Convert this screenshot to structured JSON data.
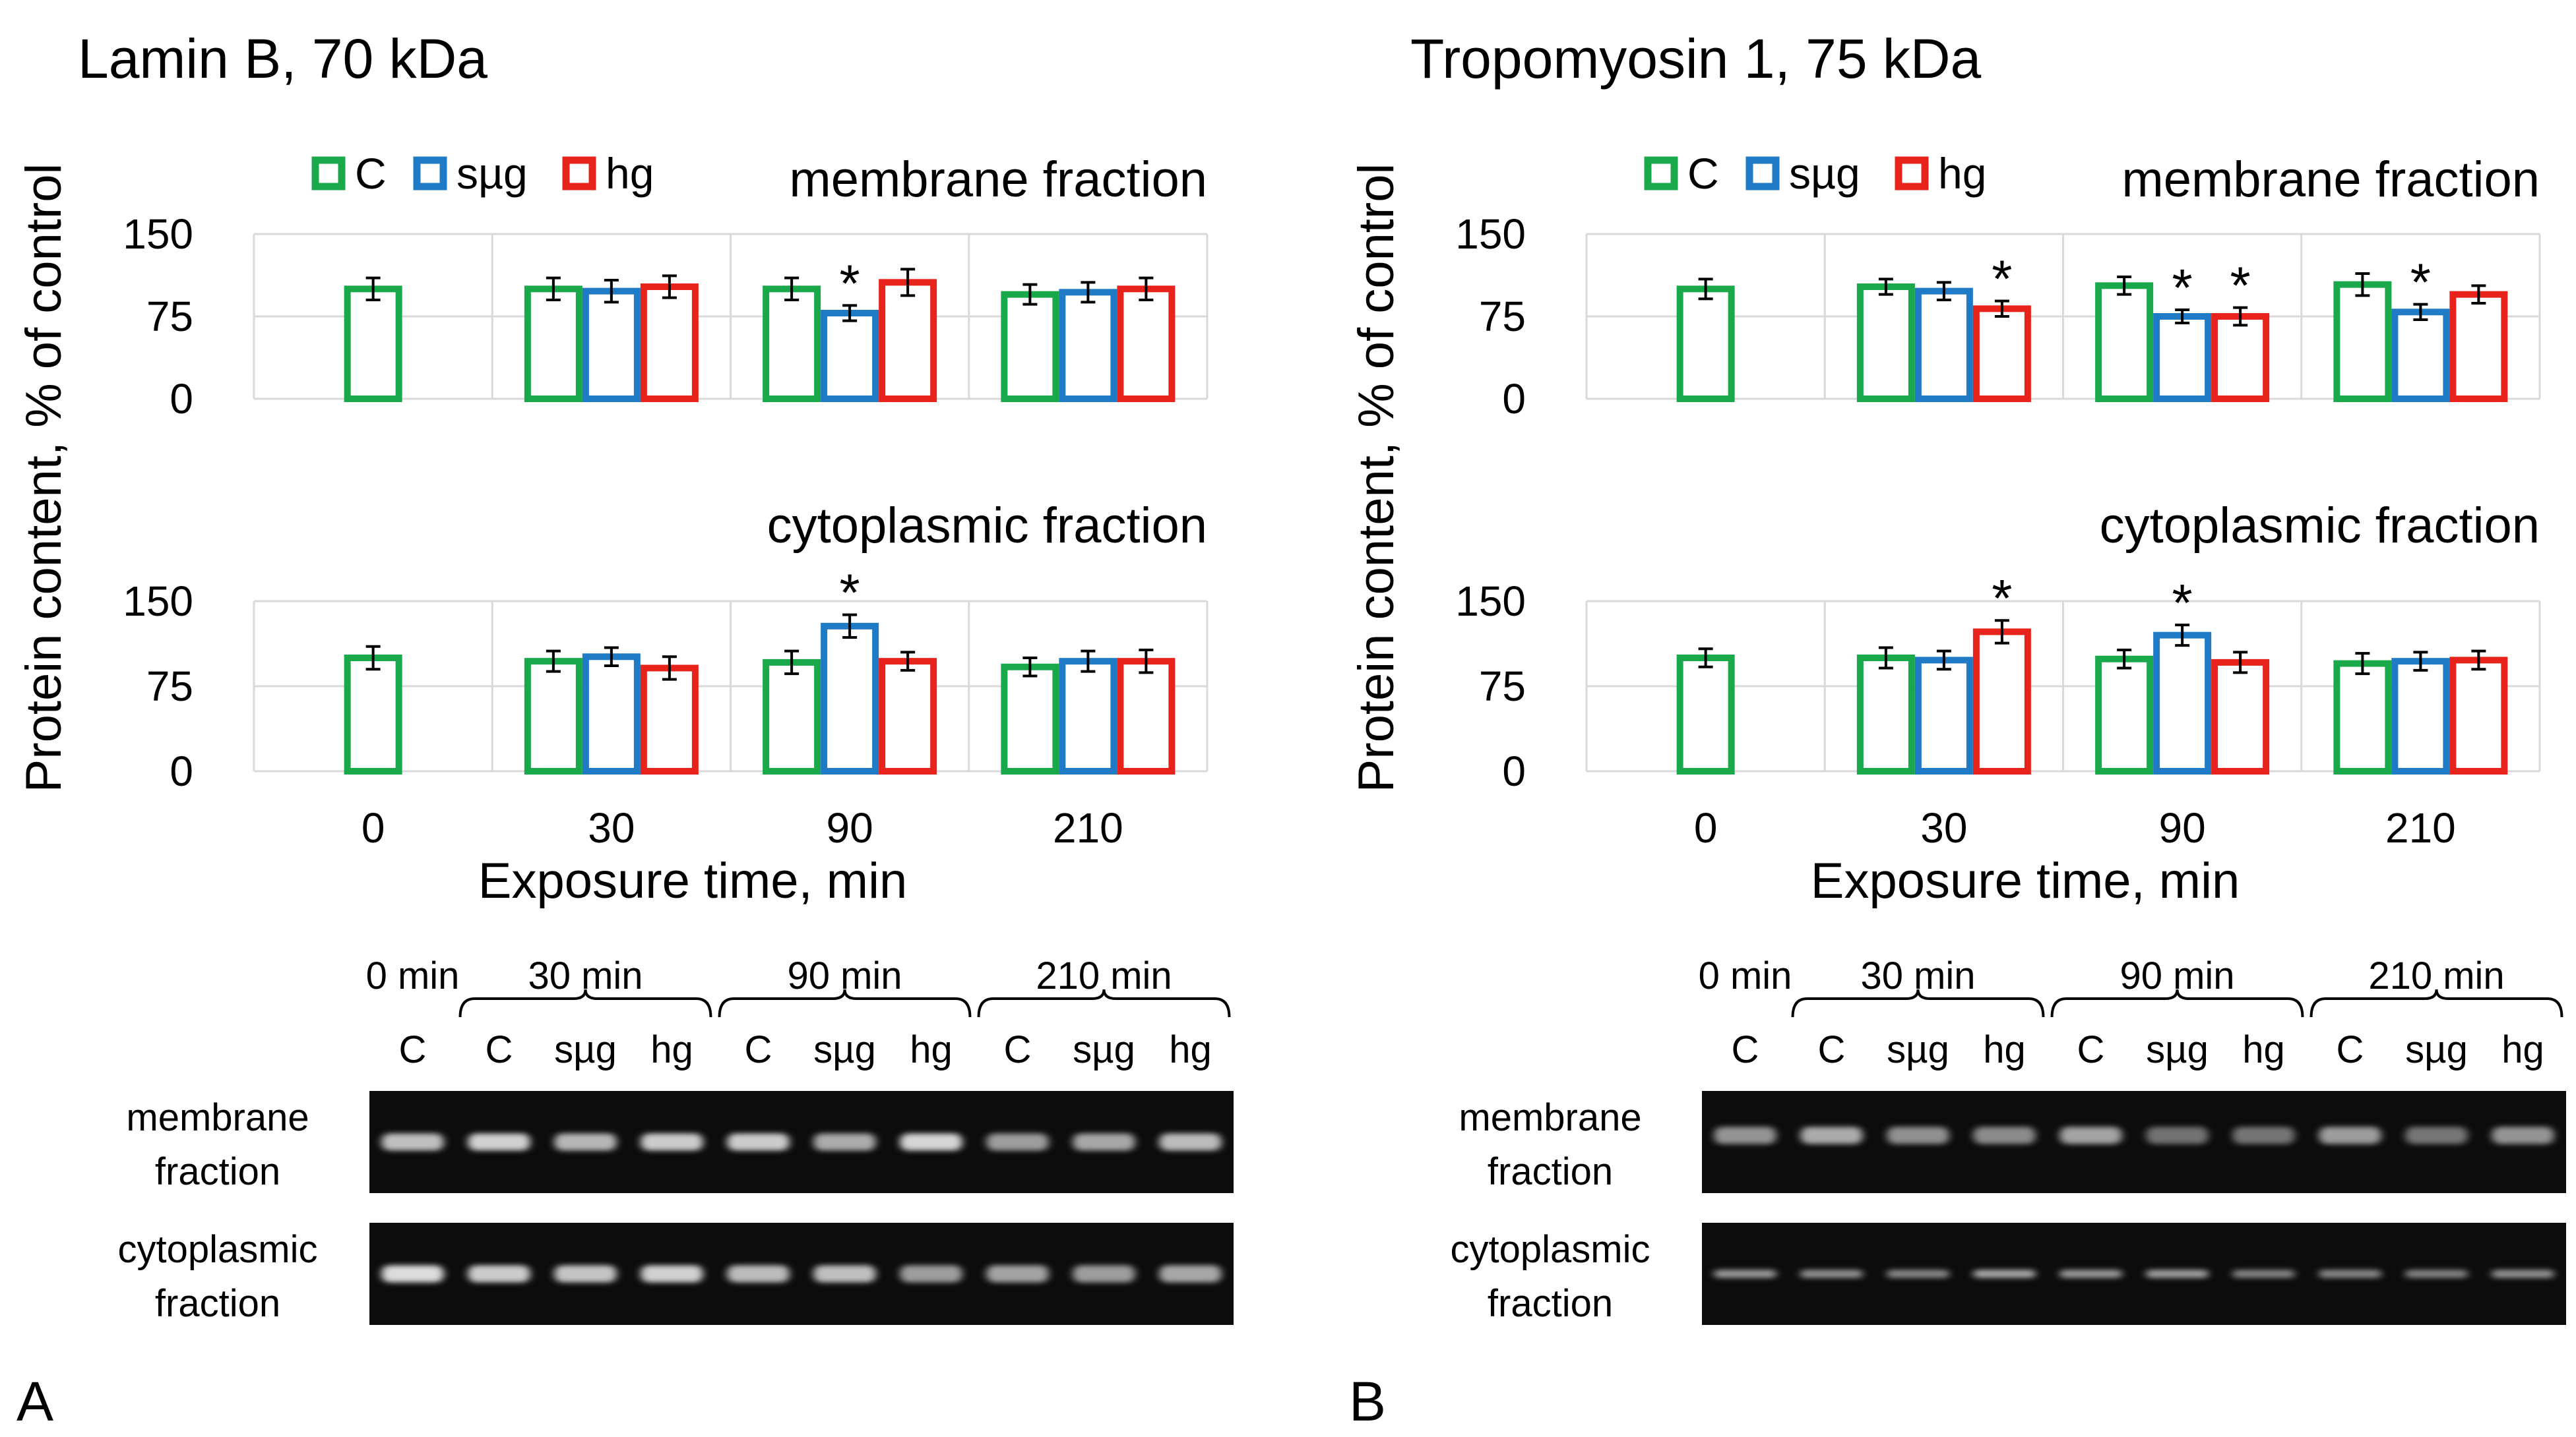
{
  "colors": {
    "C": "#19a84a",
    "sug": "#1f7bc6",
    "hg": "#e8231c",
    "grid": "#d9d9d9",
    "blot_bg": "#0c0c0c"
  },
  "chart_data": [
    {
      "type": "bar",
      "panel_letter": "A",
      "title": "Lamin B, 70 kDa",
      "ylabel": "Protein content, % of control",
      "xlabel": "Exposure time, min",
      "legend": [
        "C",
        "sµg",
        "hg"
      ],
      "legend_position": "top-left",
      "categories": [
        "0",
        "30",
        "90",
        "210"
      ],
      "yticks": [
        150,
        75,
        0
      ],
      "ylim": [
        0,
        150
      ],
      "subplots": [
        {
          "label": "membrane fraction",
          "series": [
            {
              "name": "C",
              "values": [
                100,
                100,
                100,
                95
              ],
              "errors": [
                10,
                10,
                10,
                9
              ]
            },
            {
              "name": "sµg",
              "values": [
                null,
                98,
                78,
                97
              ],
              "errors": [
                null,
                10,
                7,
                9
              ]
            },
            {
              "name": "hg",
              "values": [
                null,
                102,
                106,
                100
              ],
              "errors": [
                null,
                10,
                12,
                10
              ]
            }
          ],
          "significant": [
            {
              "category": "90",
              "series": "sµg"
            }
          ]
        },
        {
          "label": "cytoplasmic fraction",
          "series": [
            {
              "name": "C",
              "values": [
                100,
                97,
                96,
                92
              ],
              "errors": [
                10,
                9,
                10,
                8
              ]
            },
            {
              "name": "sµg",
              "values": [
                null,
                101,
                128,
                97
              ],
              "errors": [
                null,
                8,
                10,
                9
              ]
            },
            {
              "name": "hg",
              "values": [
                null,
                91,
                97,
                97
              ],
              "errors": [
                null,
                10,
                8,
                10
              ]
            }
          ],
          "significant": [
            {
              "category": "90",
              "series": "sµg"
            }
          ]
        }
      ],
      "blot": {
        "time_labels": [
          "0 min",
          "30 min",
          "90 min",
          "210 min"
        ],
        "lane_labels": [
          "C",
          "C",
          "sµg",
          "hg",
          "C",
          "sµg",
          "hg",
          "C",
          "sµg",
          "hg"
        ],
        "rows": [
          {
            "label_line1": "membrane",
            "label_line2": "fraction",
            "intensity": [
              0.72,
              0.8,
              0.68,
              0.78,
              0.78,
              0.62,
              0.82,
              0.55,
              0.6,
              0.7
            ]
          },
          {
            "label_line1": "cytoplasmic",
            "label_line2": "fraction",
            "intensity": [
              0.85,
              0.78,
              0.75,
              0.8,
              0.7,
              0.72,
              0.55,
              0.58,
              0.55,
              0.6
            ]
          }
        ]
      }
    },
    {
      "type": "bar",
      "panel_letter": "B",
      "title": "Tropomyosin 1, 75 kDa",
      "ylabel": "Protein content, % of control",
      "xlabel": "Exposure time, min",
      "legend": [
        "C",
        "sµg",
        "hg"
      ],
      "legend_position": "top-left",
      "categories": [
        "0",
        "30",
        "90",
        "210"
      ],
      "yticks": [
        150,
        75,
        0
      ],
      "ylim": [
        0,
        150
      ],
      "subplots": [
        {
          "label": "membrane fraction",
          "series": [
            {
              "name": "C",
              "values": [
                100,
                102,
                103,
                104
              ],
              "errors": [
                9,
                7,
                8,
                10
              ]
            },
            {
              "name": "sµg",
              "values": [
                null,
                98,
                75,
                79
              ],
              "errors": [
                null,
                8,
                6,
                7
              ]
            },
            {
              "name": "hg",
              "values": [
                null,
                82,
                75,
                95
              ],
              "errors": [
                null,
                7,
                8,
                8
              ]
            }
          ],
          "significant": [
            {
              "category": "30",
              "series": "hg"
            },
            {
              "category": "90",
              "series": "sµg"
            },
            {
              "category": "90",
              "series": "hg"
            },
            {
              "category": "210",
              "series": "sµg"
            }
          ]
        },
        {
          "label": "cytoplasmic fraction",
          "series": [
            {
              "name": "C",
              "values": [
                100,
                100,
                99,
                95
              ],
              "errors": [
                8,
                9,
                8,
                9
              ]
            },
            {
              "name": "sµg",
              "values": [
                null,
                98,
                120,
                97
              ],
              "errors": [
                null,
                8,
                9,
                8
              ]
            },
            {
              "name": "hg",
              "values": [
                null,
                123,
                96,
                98
              ],
              "errors": [
                null,
                10,
                9,
                8
              ]
            }
          ],
          "significant": [
            {
              "category": "30",
              "series": "hg"
            },
            {
              "category": "90",
              "series": "sµg"
            }
          ]
        }
      ],
      "blot": {
        "time_labels": [
          "0 min",
          "30 min",
          "90 min",
          "210 min"
        ],
        "lane_labels": [
          "C",
          "C",
          "sµg",
          "hg",
          "C",
          "sµg",
          "hg",
          "C",
          "sµg",
          "hg"
        ],
        "rows": [
          {
            "label_line1": "membrane",
            "label_line2": "fraction",
            "intensity": [
              0.5,
              0.62,
              0.48,
              0.45,
              0.58,
              0.3,
              0.32,
              0.55,
              0.33,
              0.5
            ]
          },
          {
            "label_line1": "cytoplasmic",
            "label_line2": "fraction",
            "intensity": [
              0.55,
              0.5,
              0.45,
              0.62,
              0.55,
              0.58,
              0.42,
              0.45,
              0.42,
              0.5
            ]
          }
        ]
      }
    }
  ]
}
